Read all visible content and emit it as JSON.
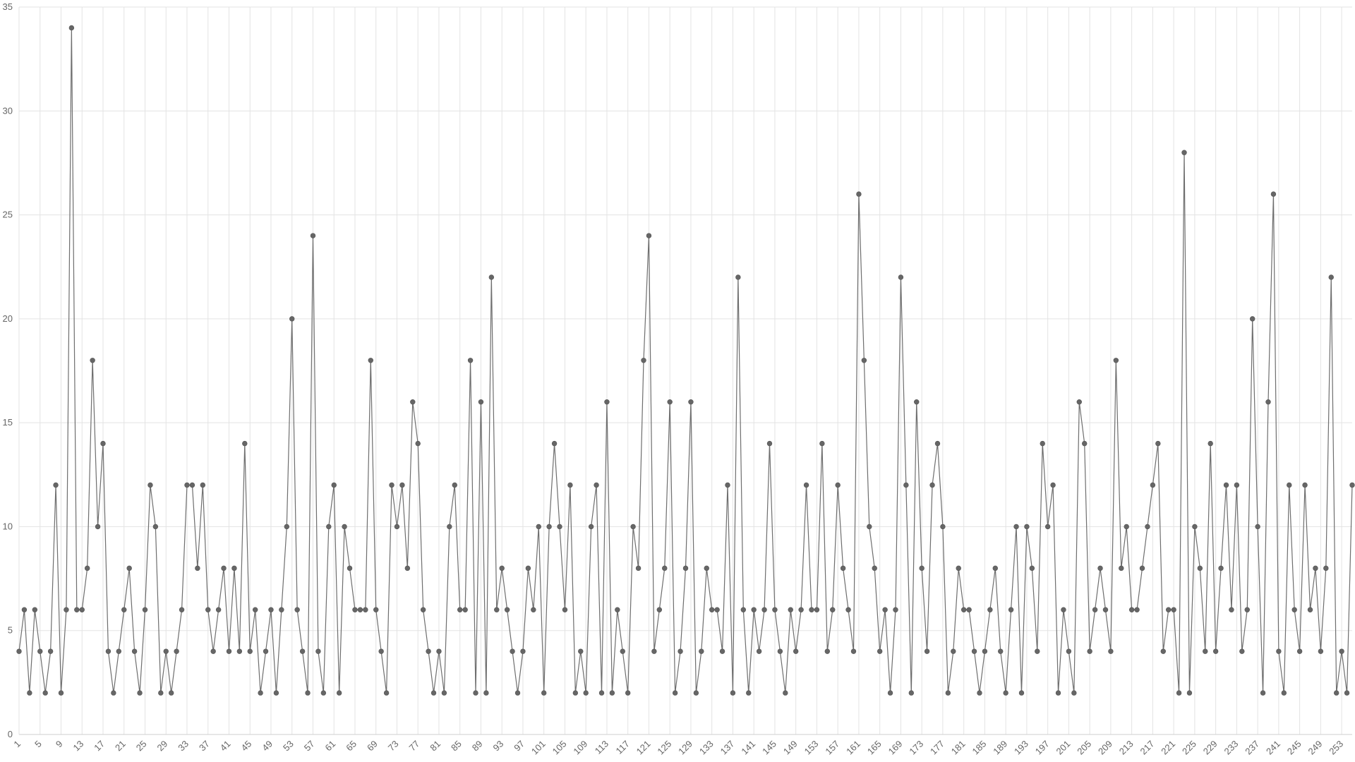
{
  "chart_data": {
    "type": "line",
    "title": "",
    "xlabel": "",
    "ylabel": "",
    "x_start": 1,
    "x_tick_step": 4,
    "ylim": [
      0,
      35
    ],
    "y_ticks": [
      0,
      5,
      10,
      15,
      20,
      25,
      30,
      35
    ],
    "grid": true,
    "legend": "none",
    "colors": {
      "line": "#6e6e6e",
      "point": "#666666",
      "grid": "#e3e3e3",
      "axis": "#cfcfcf",
      "text": "#666666"
    },
    "series": [
      {
        "values": [
          4,
          6,
          2,
          6,
          4,
          2,
          4,
          12,
          2,
          6,
          34,
          6,
          6,
          8,
          18,
          10,
          14,
          4,
          2,
          4,
          6,
          8,
          4,
          2,
          6,
          12,
          10,
          2,
          4,
          2,
          4,
          6,
          12,
          12,
          8,
          12,
          6,
          4,
          6,
          8,
          4,
          8,
          4,
          14,
          4,
          6,
          2,
          4,
          6,
          2,
          6,
          10,
          20,
          6,
          4,
          2,
          24,
          4,
          2,
          10,
          12,
          2,
          10,
          8,
          6,
          6,
          6,
          18,
          6,
          4,
          2,
          12,
          10,
          12,
          8,
          16,
          14,
          6,
          4,
          2,
          4,
          2,
          10,
          12,
          6,
          6,
          18,
          2,
          16,
          2,
          22,
          6,
          8,
          6,
          4,
          2,
          4,
          8,
          6,
          10,
          2,
          10,
          14,
          10,
          6,
          12,
          2,
          4,
          2,
          10,
          12,
          2,
          16,
          2,
          6,
          4,
          2,
          10,
          8,
          18,
          24,
          4,
          6,
          8,
          16,
          2,
          4,
          8,
          16,
          2,
          4,
          8,
          6,
          6,
          4,
          12,
          2,
          22,
          6,
          2,
          6,
          4,
          6,
          14,
          6,
          4,
          2,
          6,
          4,
          6,
          12,
          6,
          6,
          14,
          4,
          6,
          12,
          8,
          6,
          4,
          26,
          18,
          10,
          8,
          4,
          6,
          2,
          6,
          22,
          12,
          2,
          16,
          8,
          4,
          12,
          14,
          10,
          2,
          4,
          8,
          6,
          6,
          4,
          2,
          4,
          6,
          8,
          4,
          2,
          6,
          10,
          2,
          10,
          8,
          4,
          14,
          10,
          12,
          2,
          6,
          4,
          2,
          16,
          14,
          4,
          6,
          8,
          6,
          4,
          18,
          8,
          10,
          6,
          6,
          8,
          10,
          12,
          14,
          4,
          6,
          6,
          2,
          28,
          2,
          10,
          8,
          4,
          14,
          4,
          8,
          12,
          6,
          12,
          4,
          6,
          20,
          10,
          2,
          16,
          26,
          4,
          2,
          12,
          6,
          4,
          12,
          6,
          8,
          4,
          8,
          22,
          2,
          4,
          2,
          12
        ]
      }
    ]
  }
}
